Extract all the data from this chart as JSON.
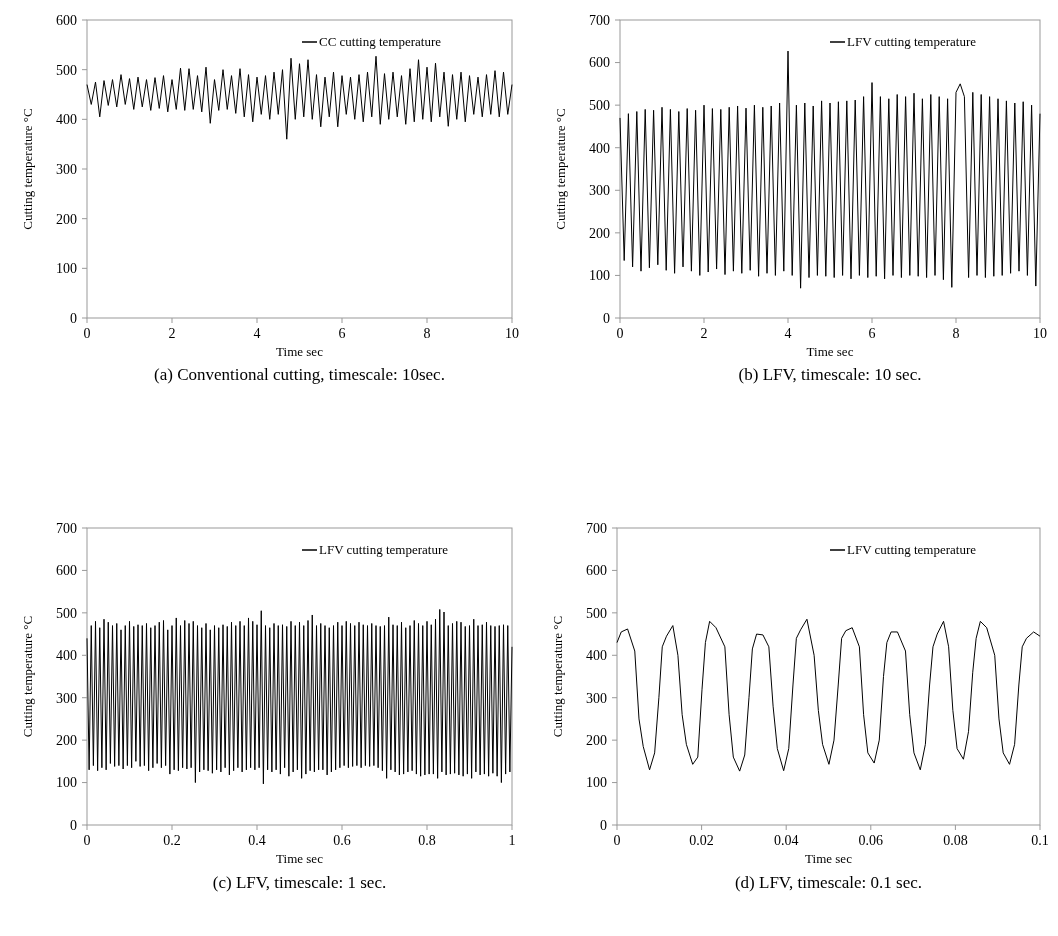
{
  "chart_data": [
    {
      "type": "line",
      "xlabel": "Time sec",
      "ylabel": "Cutting temperature °C",
      "xlim": [
        0,
        10
      ],
      "ylim": [
        0,
        600
      ],
      "xticks": [
        0,
        2,
        4,
        6,
        8,
        10
      ],
      "yticks": [
        0,
        100,
        200,
        300,
        400,
        500,
        600
      ],
      "legend": "top right",
      "grid": false,
      "annotations": [
        "(a) Conventional cutting, timescale: 10sec."
      ],
      "series": [
        {
          "name": "CC cutting temperature",
          "color": "#000000",
          "x": [
            0,
            0.1,
            0.2,
            0.3,
            0.4,
            0.5,
            0.6,
            0.7,
            0.8,
            0.9,
            1,
            1.1,
            1.2,
            1.3,
            1.4,
            1.5,
            1.6,
            1.7,
            1.8,
            1.9,
            2,
            2.1,
            2.2,
            2.3,
            2.4,
            2.5,
            2.6,
            2.7,
            2.8,
            2.9,
            3,
            3.1,
            3.2,
            3.3,
            3.4,
            3.5,
            3.6,
            3.7,
            3.8,
            3.9,
            4,
            4.1,
            4.2,
            4.3,
            4.4,
            4.5,
            4.6,
            4.7,
            4.8,
            4.9,
            5,
            5.1,
            5.2,
            5.3,
            5.4,
            5.5,
            5.6,
            5.7,
            5.8,
            5.9,
            6,
            6.1,
            6.2,
            6.3,
            6.4,
            6.5,
            6.6,
            6.7,
            6.8,
            6.9,
            7,
            7.1,
            7.2,
            7.3,
            7.4,
            7.5,
            7.6,
            7.7,
            7.8,
            7.9,
            8,
            8.1,
            8.2,
            8.3,
            8.4,
            8.5,
            8.6,
            8.7,
            8.8,
            8.9,
            9,
            9.1,
            9.2,
            9.3,
            9.4,
            9.5,
            9.6,
            9.7,
            9.8,
            9.9,
            10
          ],
          "values": [
            470,
            430,
            475,
            405,
            478,
            428,
            480,
            425,
            490,
            430,
            482,
            420,
            485,
            425,
            480,
            418,
            484,
            422,
            488,
            415,
            480,
            420,
            503,
            418,
            502,
            420,
            488,
            415,
            505,
            392,
            480,
            418,
            500,
            420,
            488,
            412,
            502,
            405,
            490,
            395,
            485,
            410,
            488,
            400,
            495,
            410,
            500,
            360,
            523,
            400,
            512,
            405,
            520,
            400,
            490,
            385,
            485,
            405,
            495,
            385,
            488,
            410,
            485,
            400,
            490,
            395,
            495,
            405,
            527,
            390,
            492,
            400,
            495,
            405,
            488,
            390,
            502,
            395,
            520,
            400,
            505,
            395,
            513,
            405,
            495,
            386,
            490,
            400,
            495,
            395,
            488,
            410,
            485,
            405,
            490,
            410,
            498,
            405,
            495,
            410,
            470
          ]
        }
      ]
    },
    {
      "type": "line",
      "xlabel": "Time sec",
      "ylabel": "Cutting temperature °C",
      "xlim": [
        0,
        10
      ],
      "ylim": [
        0,
        700
      ],
      "xticks": [
        0,
        2,
        4,
        6,
        8,
        10
      ],
      "yticks": [
        0,
        100,
        200,
        300,
        400,
        500,
        600,
        700
      ],
      "legend": "top right",
      "grid": false,
      "annotations": [
        "(b) LFV, timescale: 10 sec."
      ],
      "series": [
        {
          "name": "LFV cutting temperature",
          "color": "#000000",
          "x": [
            0,
            0.1,
            0.2,
            0.3,
            0.4,
            0.5,
            0.6,
            0.7,
            0.8,
            0.9,
            1,
            1.1,
            1.2,
            1.3,
            1.4,
            1.5,
            1.6,
            1.7,
            1.8,
            1.9,
            2,
            2.1,
            2.2,
            2.3,
            2.4,
            2.5,
            2.6,
            2.7,
            2.8,
            2.9,
            3,
            3.1,
            3.2,
            3.3,
            3.4,
            3.5,
            3.6,
            3.7,
            3.8,
            3.9,
            4,
            4.1,
            4.2,
            4.3,
            4.4,
            4.5,
            4.6,
            4.7,
            4.8,
            4.9,
            5,
            5.1,
            5.2,
            5.3,
            5.4,
            5.5,
            5.6,
            5.7,
            5.8,
            5.9,
            6,
            6.1,
            6.2,
            6.3,
            6.4,
            6.5,
            6.6,
            6.7,
            6.8,
            6.9,
            7,
            7.1,
            7.2,
            7.3,
            7.4,
            7.5,
            7.6,
            7.7,
            7.8,
            7.9,
            8,
            8.1,
            8.2,
            8.3,
            8.4,
            8.5,
            8.6,
            8.7,
            8.8,
            8.9,
            9,
            9.1,
            9.2,
            9.3,
            9.4,
            9.5,
            9.6,
            9.7,
            9.8,
            9.9,
            10
          ],
          "values": [
            470,
            135,
            480,
            120,
            485,
            110,
            490,
            118,
            488,
            125,
            495,
            112,
            490,
            105,
            485,
            120,
            492,
            110,
            488,
            100,
            500,
            108,
            492,
            115,
            490,
            102,
            495,
            110,
            498,
            105,
            493,
            112,
            500,
            98,
            495,
            105,
            498,
            100,
            505,
            110,
            627,
            100,
            500,
            70,
            505,
            95,
            498,
            100,
            510,
            98,
            505,
            95,
            508,
            100,
            510,
            92,
            512,
            100,
            520,
            95,
            553,
            98,
            520,
            92,
            515,
            100,
            525,
            95,
            520,
            100,
            528,
            98,
            515,
            95,
            525,
            100,
            520,
            90,
            515,
            72,
            530,
            550,
            520,
            95,
            530,
            100,
            525,
            95,
            520,
            98,
            515,
            100,
            510,
            105,
            505,
            110,
            508,
            100,
            500,
            75,
            480
          ]
        }
      ]
    },
    {
      "type": "line",
      "xlabel": "Time sec",
      "ylabel": "Cutting temperature °C",
      "xlim": [
        0,
        1
      ],
      "ylim": [
        0,
        700
      ],
      "xticks": [
        0,
        0.2,
        0.4,
        0.6,
        0.8,
        1
      ],
      "yticks": [
        0,
        100,
        200,
        300,
        400,
        500,
        600,
        700
      ],
      "legend": "top right",
      "grid": false,
      "annotations": [
        "(c) LFV, timescale: 1 sec."
      ],
      "series": [
        {
          "name": "LFV cutting temperature",
          "color": "#000000",
          "x": [
            0,
            0.005,
            0.01,
            0.015,
            0.02,
            0.025,
            0.03,
            0.035,
            0.04,
            0.045,
            0.05,
            0.055,
            0.06,
            0.065,
            0.07,
            0.075,
            0.08,
            0.085,
            0.09,
            0.095,
            0.1,
            0.105,
            0.11,
            0.115,
            0.12,
            0.125,
            0.13,
            0.135,
            0.14,
            0.145,
            0.15,
            0.155,
            0.16,
            0.165,
            0.17,
            0.175,
            0.18,
            0.185,
            0.19,
            0.195,
            0.2,
            0.205,
            0.21,
            0.215,
            0.22,
            0.225,
            0.23,
            0.235,
            0.24,
            0.245,
            0.25,
            0.255,
            0.26,
            0.265,
            0.27,
            0.275,
            0.28,
            0.285,
            0.29,
            0.295,
            0.3,
            0.305,
            0.31,
            0.315,
            0.32,
            0.325,
            0.33,
            0.335,
            0.34,
            0.345,
            0.35,
            0.355,
            0.36,
            0.365,
            0.37,
            0.375,
            0.38,
            0.385,
            0.39,
            0.395,
            0.4,
            0.405,
            0.41,
            0.415,
            0.42,
            0.425,
            0.43,
            0.435,
            0.44,
            0.445,
            0.45,
            0.455,
            0.46,
            0.465,
            0.47,
            0.475,
            0.48,
            0.485,
            0.49,
            0.495,
            0.5,
            0.505,
            0.51,
            0.515,
            0.52,
            0.525,
            0.53,
            0.535,
            0.54,
            0.545,
            0.55,
            0.555,
            0.56,
            0.565,
            0.57,
            0.575,
            0.58,
            0.585,
            0.59,
            0.595,
            0.6,
            0.605,
            0.61,
            0.615,
            0.62,
            0.625,
            0.63,
            0.635,
            0.64,
            0.645,
            0.65,
            0.655,
            0.66,
            0.665,
            0.67,
            0.675,
            0.68,
            0.685,
            0.69,
            0.695,
            0.7,
            0.705,
            0.71,
            0.715,
            0.72,
            0.725,
            0.73,
            0.735,
            0.74,
            0.745,
            0.75,
            0.755,
            0.76,
            0.765,
            0.77,
            0.775,
            0.78,
            0.785,
            0.79,
            0.795,
            0.8,
            0.805,
            0.81,
            0.815,
            0.82,
            0.825,
            0.83,
            0.835,
            0.84,
            0.845,
            0.85,
            0.855,
            0.86,
            0.865,
            0.87,
            0.875,
            0.88,
            0.885,
            0.89,
            0.895,
            0.9,
            0.905,
            0.91,
            0.915,
            0.92,
            0.925,
            0.93,
            0.935,
            0.94,
            0.945,
            0.95,
            0.955,
            0.96,
            0.965,
            0.97,
            0.975,
            0.98,
            0.985,
            0.99,
            0.995,
            1
          ],
          "values": [
            440,
            130,
            470,
            140,
            480,
            128,
            465,
            135,
            485,
            130,
            478,
            145,
            470,
            138,
            475,
            140,
            460,
            132,
            470,
            140,
            480,
            135,
            468,
            150,
            472,
            138,
            470,
            140,
            475,
            128,
            465,
            135,
            470,
            145,
            478,
            135,
            482,
            140,
            460,
            120,
            470,
            130,
            488,
            128,
            470,
            135,
            482,
            132,
            475,
            135,
            480,
            100,
            470,
            125,
            465,
            130,
            475,
            128,
            460,
            122,
            470,
            130,
            465,
            125,
            472,
            135,
            468,
            118,
            478,
            128,
            470,
            135,
            480,
            125,
            470,
            130,
            488,
            135,
            480,
            130,
            472,
            135,
            505,
            97,
            470,
            130,
            465,
            125,
            475,
            130,
            470,
            120,
            472,
            135,
            468,
            115,
            480,
            125,
            470,
            130,
            478,
            110,
            470,
            120,
            482,
            128,
            495,
            125,
            470,
            130,
            475,
            130,
            470,
            118,
            465,
            125,
            470,
            130,
            478,
            135,
            470,
            140,
            480,
            135,
            475,
            138,
            470,
            140,
            478,
            135,
            472,
            140,
            470,
            138,
            475,
            140,
            470,
            135,
            468,
            128,
            470,
            110,
            490,
            130,
            472,
            125,
            470,
            118,
            478,
            120,
            465,
            125,
            470,
            128,
            482,
            120,
            475,
            115,
            470,
            118,
            480,
            120,
            472,
            120,
            485,
            110,
            508,
            125,
            502,
            118,
            470,
            120,
            475,
            122,
            480,
            118,
            478,
            115,
            468,
            120,
            470,
            110,
            485,
            125,
            470,
            118,
            472,
            120,
            478,
            115,
            470,
            122,
            468,
            115,
            470,
            100,
            472,
            120,
            470,
            125,
            420
          ]
        }
      ]
    },
    {
      "type": "line",
      "xlabel": "Time sec",
      "ylabel": "Cutting temperature °C",
      "xlim": [
        0,
        0.1
      ],
      "ylim": [
        0,
        700
      ],
      "xticks": [
        0,
        0.02,
        0.04,
        0.06,
        0.08,
        {
          "value": 0.1,
          "label": "0.1"
        }
      ],
      "yticks": [
        0,
        100,
        200,
        300,
        400,
        500,
        600,
        700
      ],
      "legend": "top right",
      "grid": false,
      "annotations": [
        "(d) LFV, timescale: 0.1 sec."
      ],
      "series": [
        {
          "name": "LFV cutting temperature",
          "color": "#000000",
          "x": [
            0,
            0.001,
            0.0025,
            0.0042,
            0.0052,
            0.0062,
            0.0077,
            0.0089,
            0.0099,
            0.0107,
            0.0117,
            0.0132,
            0.0144,
            0.0154,
            0.0164,
            0.0179,
            0.0191,
            0.0201,
            0.0209,
            0.0219,
            0.0234,
            0.0255,
            0.0265,
            0.0275,
            0.029,
            0.0302,
            0.0312,
            0.032,
            0.033,
            0.0345,
            0.0359,
            0.0369,
            0.0379,
            0.0394,
            0.0406,
            0.0416,
            0.0424,
            0.0434,
            0.0449,
            0.0466,
            0.0476,
            0.0486,
            0.0501,
            0.0513,
            0.0523,
            0.0531,
            0.0541,
            0.0556,
            0.0573,
            0.0583,
            0.0593,
            0.0608,
            0.062,
            0.063,
            0.0638,
            0.0648,
            0.0663,
            0.0682,
            0.0692,
            0.0702,
            0.0717,
            0.0729,
            0.0739,
            0.0747,
            0.0757,
            0.0772,
            0.0784,
            0.0794,
            0.0804,
            0.0819,
            0.0831,
            0.0841,
            0.0849,
            0.0859,
            0.0874,
            0.0893,
            0.0903,
            0.0913,
            0.0928,
            0.094,
            0.095,
            0.0958,
            0.0968,
            0.0985,
            0.1
          ],
          "values": [
            430,
            455,
            462,
            410,
            250,
            185,
            130,
            170,
            300,
            420,
            445,
            470,
            400,
            260,
            190,
            143,
            160,
            320,
            430,
            480,
            465,
            420,
            260,
            160,
            127,
            165,
            300,
            415,
            450,
            448,
            420,
            280,
            180,
            128,
            180,
            330,
            440,
            460,
            485,
            400,
            270,
            190,
            143,
            200,
            330,
            440,
            458,
            465,
            420,
            260,
            170,
            146,
            200,
            350,
            430,
            455,
            455,
            410,
            260,
            170,
            130,
            190,
            330,
            420,
            450,
            480,
            420,
            270,
            180,
            155,
            220,
            360,
            440,
            480,
            465,
            400,
            250,
            170,
            143,
            190,
            330,
            420,
            440,
            455,
            445
          ]
        }
      ]
    }
  ]
}
